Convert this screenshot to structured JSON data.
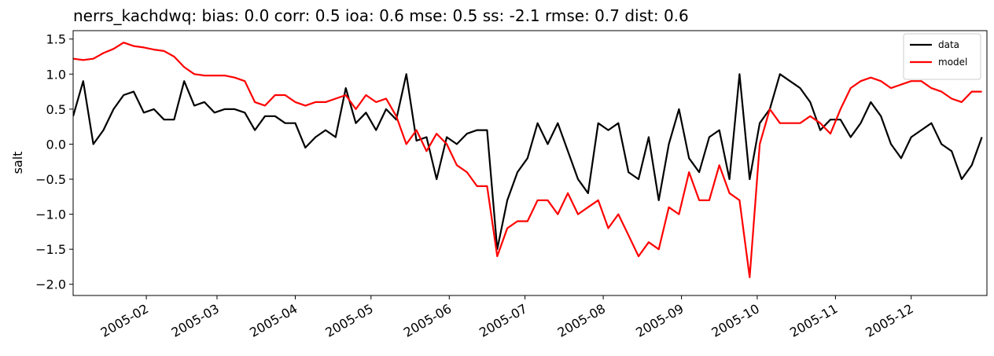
{
  "chart_data": {
    "type": "line",
    "title": "nerrs_kachdwq: bias: 0.0  corr: 0.5  ioa: 0.6  mse: 0.5  ss: -2.1  rmse: 0.7  dist: 0.6",
    "y_label": "salt",
    "legend": "upper right",
    "x": [
      2,
      6,
      10,
      14,
      18,
      22,
      26,
      30,
      34,
      38,
      42,
      46,
      50,
      54,
      58,
      62,
      66,
      70,
      74,
      78,
      82,
      86,
      90,
      94,
      98,
      102,
      106,
      110,
      114,
      118,
      122,
      126,
      130,
      134,
      138,
      142,
      146,
      150,
      154,
      158,
      162,
      166,
      170,
      174,
      178,
      182,
      186,
      190,
      194,
      198,
      202,
      206,
      210,
      214,
      218,
      222,
      226,
      230,
      234,
      238,
      242,
      246,
      250,
      254,
      258,
      262,
      266,
      270,
      274,
      278,
      282,
      286,
      290,
      294,
      298,
      302,
      306,
      310,
      314,
      318,
      322,
      326,
      330,
      334,
      338,
      342,
      346,
      350,
      354,
      358,
      362
    ],
    "xlim": [
      2,
      364
    ],
    "xticks": [
      {
        "value": 31,
        "label": "2005-02"
      },
      {
        "value": 59,
        "label": "2005-03"
      },
      {
        "value": 90,
        "label": "2005-04"
      },
      {
        "value": 120,
        "label": "2005-05"
      },
      {
        "value": 151,
        "label": "2005-06"
      },
      {
        "value": 181,
        "label": "2005-07"
      },
      {
        "value": 212,
        "label": "2005-08"
      },
      {
        "value": 243,
        "label": "2005-09"
      },
      {
        "value": 273,
        "label": "2005-10"
      },
      {
        "value": 304,
        "label": "2005-11"
      },
      {
        "value": 334,
        "label": "2005-12"
      }
    ],
    "ylim": [
      -2.16,
      1.62
    ],
    "yticks": [
      {
        "value": -2.0,
        "label": "−2.0"
      },
      {
        "value": -1.5,
        "label": "−1.5"
      },
      {
        "value": -1.0,
        "label": "−1.0"
      },
      {
        "value": -0.5,
        "label": "−0.5"
      },
      {
        "value": 0.0,
        "label": "0.0"
      },
      0.5,
      {
        "value": 1.0,
        "label": "1.0"
      },
      1.5
    ],
    "series": [
      {
        "name": "data",
        "color": "#000000",
        "values": [
          0.4,
          0.9,
          0.0,
          0.2,
          0.5,
          0.7,
          0.75,
          0.45,
          0.5,
          0.35,
          0.35,
          0.9,
          0.55,
          0.6,
          0.45,
          0.5,
          0.5,
          0.45,
          0.2,
          0.4,
          0.4,
          0.3,
          0.3,
          -0.05,
          0.1,
          0.2,
          0.1,
          0.8,
          0.3,
          0.45,
          0.2,
          0.5,
          0.35,
          1.0,
          0.05,
          0.1,
          -0.5,
          0.1,
          0.0,
          0.15,
          0.2,
          0.2,
          -1.5,
          -0.8,
          -0.4,
          -0.2,
          0.3,
          0.0,
          0.3,
          -0.1,
          -0.5,
          -0.7,
          0.3,
          0.2,
          0.3,
          -0.4,
          -0.5,
          0.1,
          -0.8,
          0.0,
          0.5,
          -0.2,
          -0.4,
          0.1,
          0.2,
          -0.5,
          1.0,
          -0.5,
          0.3,
          0.5,
          1.0,
          0.9,
          0.8,
          0.6,
          0.2,
          0.35,
          0.35,
          0.1,
          0.3,
          0.6,
          0.4,
          0.0,
          -0.2,
          0.1,
          0.2,
          0.3,
          0.0,
          -0.1,
          -0.5,
          -0.3,
          0.1
        ]
      },
      {
        "name": "model",
        "color": "#ff0000",
        "values": [
          1.22,
          1.2,
          1.22,
          1.3,
          1.36,
          1.45,
          1.4,
          1.38,
          1.35,
          1.33,
          1.25,
          1.1,
          1.0,
          0.98,
          0.98,
          0.98,
          0.95,
          0.9,
          0.6,
          0.55,
          0.7,
          0.7,
          0.6,
          0.55,
          0.6,
          0.6,
          0.65,
          0.7,
          0.5,
          0.7,
          0.6,
          0.65,
          0.4,
          0.0,
          0.2,
          -0.1,
          0.15,
          0.0,
          -0.3,
          -0.4,
          -0.6,
          -0.6,
          -1.6,
          -1.2,
          -1.1,
          -1.1,
          -0.8,
          -0.8,
          -1.0,
          -0.7,
          -1.0,
          -0.9,
          -0.8,
          -1.2,
          -1.0,
          -1.3,
          -1.6,
          -1.4,
          -1.5,
          -0.9,
          -1.0,
          -0.4,
          -0.8,
          -0.8,
          -0.3,
          -0.7,
          -0.8,
          -1.9,
          0.0,
          0.5,
          0.3,
          0.3,
          0.3,
          0.4,
          0.3,
          0.15,
          0.5,
          0.8,
          0.9,
          0.95,
          0.9,
          0.8,
          0.85,
          0.9,
          0.9,
          0.8,
          0.75,
          0.65,
          0.6,
          0.75,
          0.75
        ]
      }
    ]
  }
}
